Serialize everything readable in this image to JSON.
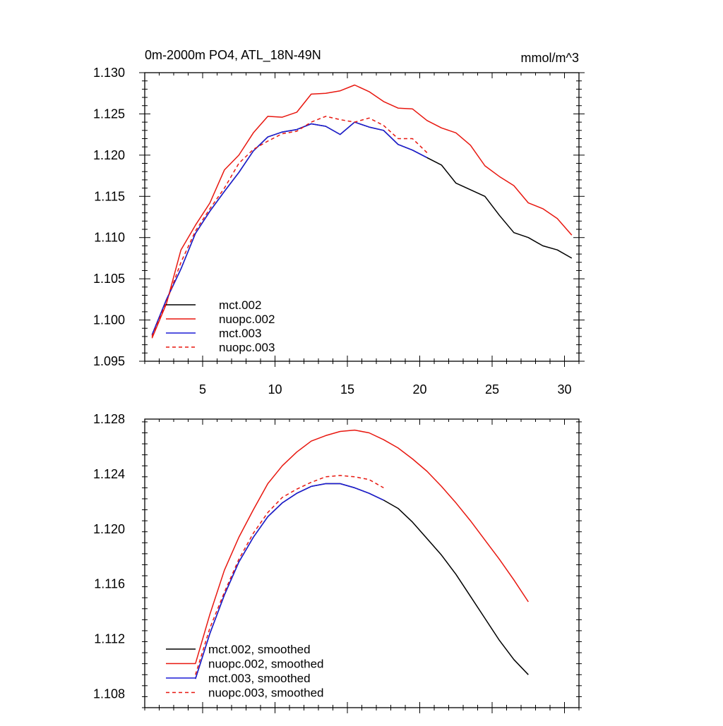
{
  "chart_data": [
    {
      "type": "line",
      "title": "0m-2000m PO4, ATL_18N-49N",
      "units": "mmol/m^3",
      "xlim": [
        1,
        31
      ],
      "ylim": [
        1.095,
        1.13
      ],
      "xticks": [
        5,
        10,
        15,
        20,
        25,
        30
      ],
      "yticks": [
        1.095,
        1.1,
        1.105,
        1.11,
        1.115,
        1.12,
        1.125,
        1.13
      ],
      "ytick_labels": [
        "1.095",
        "1.100",
        "1.105",
        "1.110",
        "1.115",
        "1.120",
        "1.125",
        "1.130"
      ],
      "xtick_labels": [
        "5",
        "10",
        "15",
        "20",
        "25",
        "30"
      ],
      "legend_position": "bottom-left",
      "series": [
        {
          "name": "mct.002",
          "color": "#000000",
          "dash": "solid",
          "x": [
            1.5,
            2.5,
            3.5,
            4.5,
            5.5,
            6.5,
            7.5,
            8.5,
            9.5,
            10.5,
            11.5,
            12.5,
            13.5,
            14.5,
            15.5,
            16.5,
            17.5,
            18.5,
            19.5,
            20.5,
            21.5,
            22.5,
            23.5,
            24.5,
            25.5,
            26.5,
            27.5,
            28.5,
            29.5,
            30.5
          ],
          "values": [
            1.0982,
            1.1025,
            1.1062,
            1.1105,
            1.1132,
            1.1156,
            1.1179,
            1.1205,
            1.1222,
            1.1228,
            1.1231,
            1.1238,
            1.1235,
            1.1225,
            1.124,
            1.1234,
            1.123,
            1.1213,
            1.1206,
            1.1197,
            1.1188,
            1.1166,
            1.1158,
            1.115,
            1.1127,
            1.1106,
            1.11,
            1.109,
            1.1085,
            1.1075
          ]
        },
        {
          "name": "nuopc.002",
          "color": "#e8170f",
          "dash": "solid",
          "x": [
            1.5,
            2.5,
            3.5,
            4.5,
            5.5,
            6.5,
            7.5,
            8.5,
            9.5,
            10.5,
            11.5,
            12.5,
            13.5,
            14.5,
            15.5,
            16.5,
            17.5,
            18.5,
            19.5,
            20.5,
            21.5,
            22.5,
            23.5,
            24.5,
            25.5,
            26.5,
            27.5,
            28.5,
            29.5,
            30.5
          ],
          "values": [
            1.0978,
            1.102,
            1.1085,
            1.1115,
            1.1142,
            1.1182,
            1.12,
            1.1227,
            1.1247,
            1.1246,
            1.1252,
            1.1274,
            1.1275,
            1.1278,
            1.1285,
            1.1277,
            1.1265,
            1.1257,
            1.1256,
            1.1242,
            1.1233,
            1.1227,
            1.1212,
            1.1187,
            1.1174,
            1.1163,
            1.1142,
            1.1135,
            1.1123,
            1.1103
          ]
        },
        {
          "name": "mct.003",
          "color": "#1b1bd6",
          "dash": "solid",
          "x": [
            1.5,
            2.5,
            3.5,
            4.5,
            5.5,
            6.5,
            7.5,
            8.5,
            9.5,
            10.5,
            11.5,
            12.5,
            13.5,
            14.5,
            15.5,
            16.5,
            17.5,
            18.5,
            19.5,
            20.5
          ],
          "values": [
            1.0982,
            1.1025,
            1.1062,
            1.1105,
            1.1132,
            1.1156,
            1.1179,
            1.1205,
            1.1222,
            1.1228,
            1.1231,
            1.1238,
            1.1235,
            1.1225,
            1.124,
            1.1234,
            1.123,
            1.1213,
            1.1206,
            1.1197
          ]
        },
        {
          "name": "nuopc.003",
          "color": "#e8170f",
          "dash": "dashed",
          "x": [
            1.5,
            2.5,
            3.5,
            4.5,
            5.5,
            6.5,
            7.5,
            8.5,
            9.5,
            10.5,
            11.5,
            12.5,
            13.5,
            14.5,
            15.5,
            16.5,
            17.5,
            18.5,
            19.5,
            20.5
          ],
          "values": [
            1.098,
            1.1022,
            1.107,
            1.1108,
            1.1135,
            1.116,
            1.119,
            1.1207,
            1.1217,
            1.1226,
            1.1229,
            1.124,
            1.1247,
            1.1243,
            1.124,
            1.1245,
            1.1236,
            1.122,
            1.122,
            1.1203
          ]
        }
      ]
    },
    {
      "type": "line",
      "title": "",
      "xlim": [
        1,
        31
      ],
      "ylim": [
        1.107,
        1.128
      ],
      "xticks": [
        5,
        10,
        15,
        20,
        25,
        30
      ],
      "yticks": [
        1.108,
        1.112,
        1.116,
        1.12,
        1.124,
        1.128
      ],
      "ytick_labels": [
        "1.108",
        "1.112",
        "1.116",
        "1.120",
        "1.124",
        "1.128"
      ],
      "legend_position": "bottom-left",
      "series": [
        {
          "name": "mct.002, smoothed",
          "color": "#000000",
          "dash": "solid",
          "x": [
            4.5,
            5.5,
            6.5,
            7.5,
            8.5,
            9.5,
            10.5,
            11.5,
            12.5,
            13.5,
            14.5,
            15.5,
            16.5,
            17.5,
            18.5,
            19.5,
            20.5,
            21.5,
            22.5,
            23.5,
            24.5,
            25.5,
            26.5,
            27.5
          ],
          "values": [
            1.1091,
            1.1124,
            1.1152,
            1.1176,
            1.1194,
            1.1209,
            1.1219,
            1.1226,
            1.1231,
            1.1233,
            1.1233,
            1.123,
            1.1226,
            1.1221,
            1.1215,
            1.1205,
            1.1193,
            1.1181,
            1.1167,
            1.1151,
            1.1135,
            1.1119,
            1.1105,
            1.1094
          ]
        },
        {
          "name": "nuopc.002, smoothed",
          "color": "#e8170f",
          "dash": "solid",
          "x": [
            4.5,
            5.5,
            6.5,
            7.5,
            8.5,
            9.5,
            10.5,
            11.5,
            12.5,
            13.5,
            14.5,
            15.5,
            16.5,
            17.5,
            18.5,
            19.5,
            20.5,
            21.5,
            22.5,
            23.5,
            24.5,
            25.5,
            26.5,
            27.5
          ],
          "values": [
            1.1102,
            1.1138,
            1.117,
            1.1194,
            1.1214,
            1.1233,
            1.1246,
            1.1256,
            1.1264,
            1.1268,
            1.1271,
            1.1272,
            1.127,
            1.1265,
            1.1259,
            1.1251,
            1.1242,
            1.1231,
            1.1219,
            1.1206,
            1.1192,
            1.1178,
            1.1163,
            1.1147
          ]
        },
        {
          "name": "mct.003, smoothed",
          "color": "#1b1bd6",
          "dash": "solid",
          "x": [
            4.5,
            5.5,
            6.5,
            7.5,
            8.5,
            9.5,
            10.5,
            11.5,
            12.5,
            13.5,
            14.5,
            15.5,
            16.5,
            17.5
          ],
          "values": [
            1.1091,
            1.1124,
            1.1152,
            1.1176,
            1.1194,
            1.1209,
            1.1219,
            1.1226,
            1.1231,
            1.1233,
            1.1233,
            1.123,
            1.1226,
            1.1221
          ]
        },
        {
          "name": "nuopc.003, smoothed",
          "color": "#e8170f",
          "dash": "dashed",
          "x": [
            4.5,
            5.5,
            6.5,
            7.5,
            8.5,
            9.5,
            10.5,
            11.5,
            12.5,
            13.5,
            14.5,
            15.5,
            16.5,
            17.5
          ],
          "values": [
            1.1094,
            1.1128,
            1.1154,
            1.1178,
            1.1197,
            1.1212,
            1.1223,
            1.1229,
            1.1234,
            1.1238,
            1.1239,
            1.1238,
            1.1236,
            1.123
          ]
        }
      ]
    }
  ]
}
